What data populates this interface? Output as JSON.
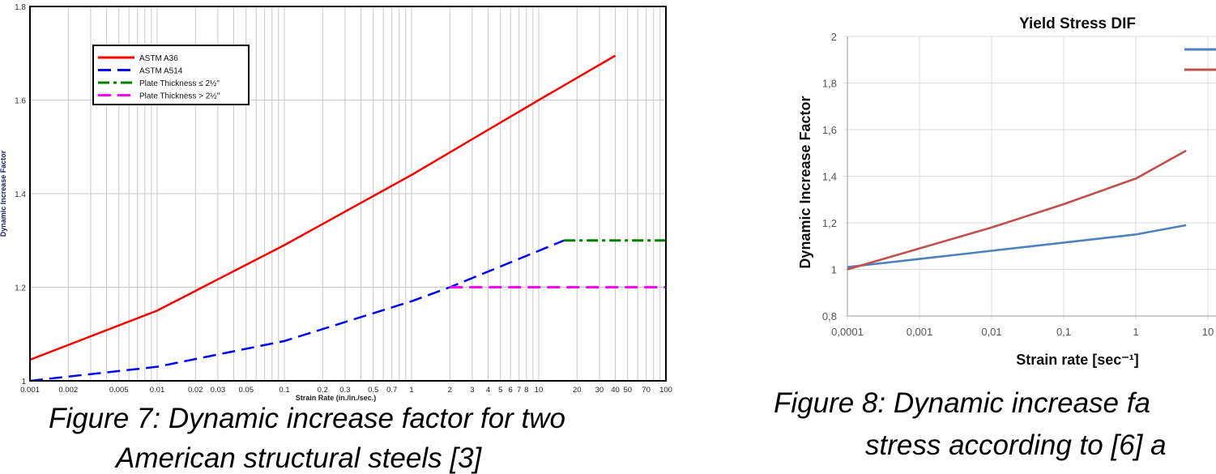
{
  "chart_data": [
    {
      "type": "line",
      "xscale": "log",
      "xlim": [
        0.001,
        100
      ],
      "ylim": [
        1.0,
        1.8
      ],
      "xlabel": "Strain Rate (in./in./sec.)",
      "ylabel": "Dynamic Increase Factor",
      "x_ticks": [
        "0.001",
        "0.002",
        "0.005",
        "0.01",
        "0.02",
        "0.03",
        "0.05",
        "0.1",
        "0.2",
        "0.3",
        "0.5",
        "0.7",
        "1",
        "2",
        "3",
        "4",
        "5",
        "6",
        "7",
        "8",
        "10",
        "20",
        "30",
        "40",
        "50",
        "70",
        "100"
      ],
      "y_ticks": [
        "1",
        "1.2",
        "1.4",
        "1.6",
        "1.8"
      ],
      "grid": true,
      "legend_position": "top-left",
      "series": [
        {
          "name": "ASTM A36",
          "color": "#ff0000",
          "style": "solid",
          "x": [
            0.001,
            0.01,
            0.1,
            1,
            10,
            40
          ],
          "y": [
            1.045,
            1.15,
            1.29,
            1.44,
            1.6,
            1.695
          ]
        },
        {
          "name": "ASTM A514",
          "color": "#0000ff",
          "style": "dashed",
          "x": [
            0.001,
            0.01,
            0.1,
            1,
            2,
            15.8
          ],
          "y": [
            1.0,
            1.03,
            1.085,
            1.17,
            1.2,
            1.3
          ]
        },
        {
          "name": "Plate Thickness ≤ 2½\"",
          "color": "#008000",
          "style": "dash-dot",
          "x": [
            15.8,
            100
          ],
          "y": [
            1.3,
            1.3
          ]
        },
        {
          "name": "Plate Thickness > 2½\"",
          "color": "#ff00ff",
          "style": "dashed",
          "x": [
            2,
            100
          ],
          "y": [
            1.2,
            1.2
          ]
        }
      ],
      "caption": [
        "Figure 7: Dynamic increase factor for two",
        "American structural steels [3]"
      ]
    },
    {
      "type": "line",
      "title": "Yield Stress DIF",
      "xscale": "log",
      "xlim": [
        0.0001,
        10
      ],
      "ylim": [
        0.8,
        2
      ],
      "xlabel": "Strain rate [sec⁻¹]",
      "ylabel": "Dynamic Increase Factor",
      "x_ticks": [
        "0,0001",
        "0,001",
        "0,01",
        "0,1",
        "1",
        "10"
      ],
      "y_ticks": [
        "0,8",
        "1",
        "1,2",
        "1,4",
        "1,6",
        "1,8",
        "2"
      ],
      "grid": true,
      "legend_position": "top-right",
      "series": [
        {
          "color": "#4f81bd",
          "x": [
            0.0001,
            0.001,
            0.01,
            0.1,
            1,
            5
          ],
          "y": [
            1.01,
            1.045,
            1.08,
            1.115,
            1.15,
            1.19
          ]
        },
        {
          "color": "#c0504d",
          "x": [
            0.0001,
            0.001,
            0.01,
            0.1,
            1,
            5
          ],
          "y": [
            1.0,
            1.09,
            1.18,
            1.28,
            1.39,
            1.51
          ]
        }
      ],
      "caption": [
        "Figure 8: Dynamic increase fa",
        "stress according to [6] a"
      ]
    }
  ]
}
